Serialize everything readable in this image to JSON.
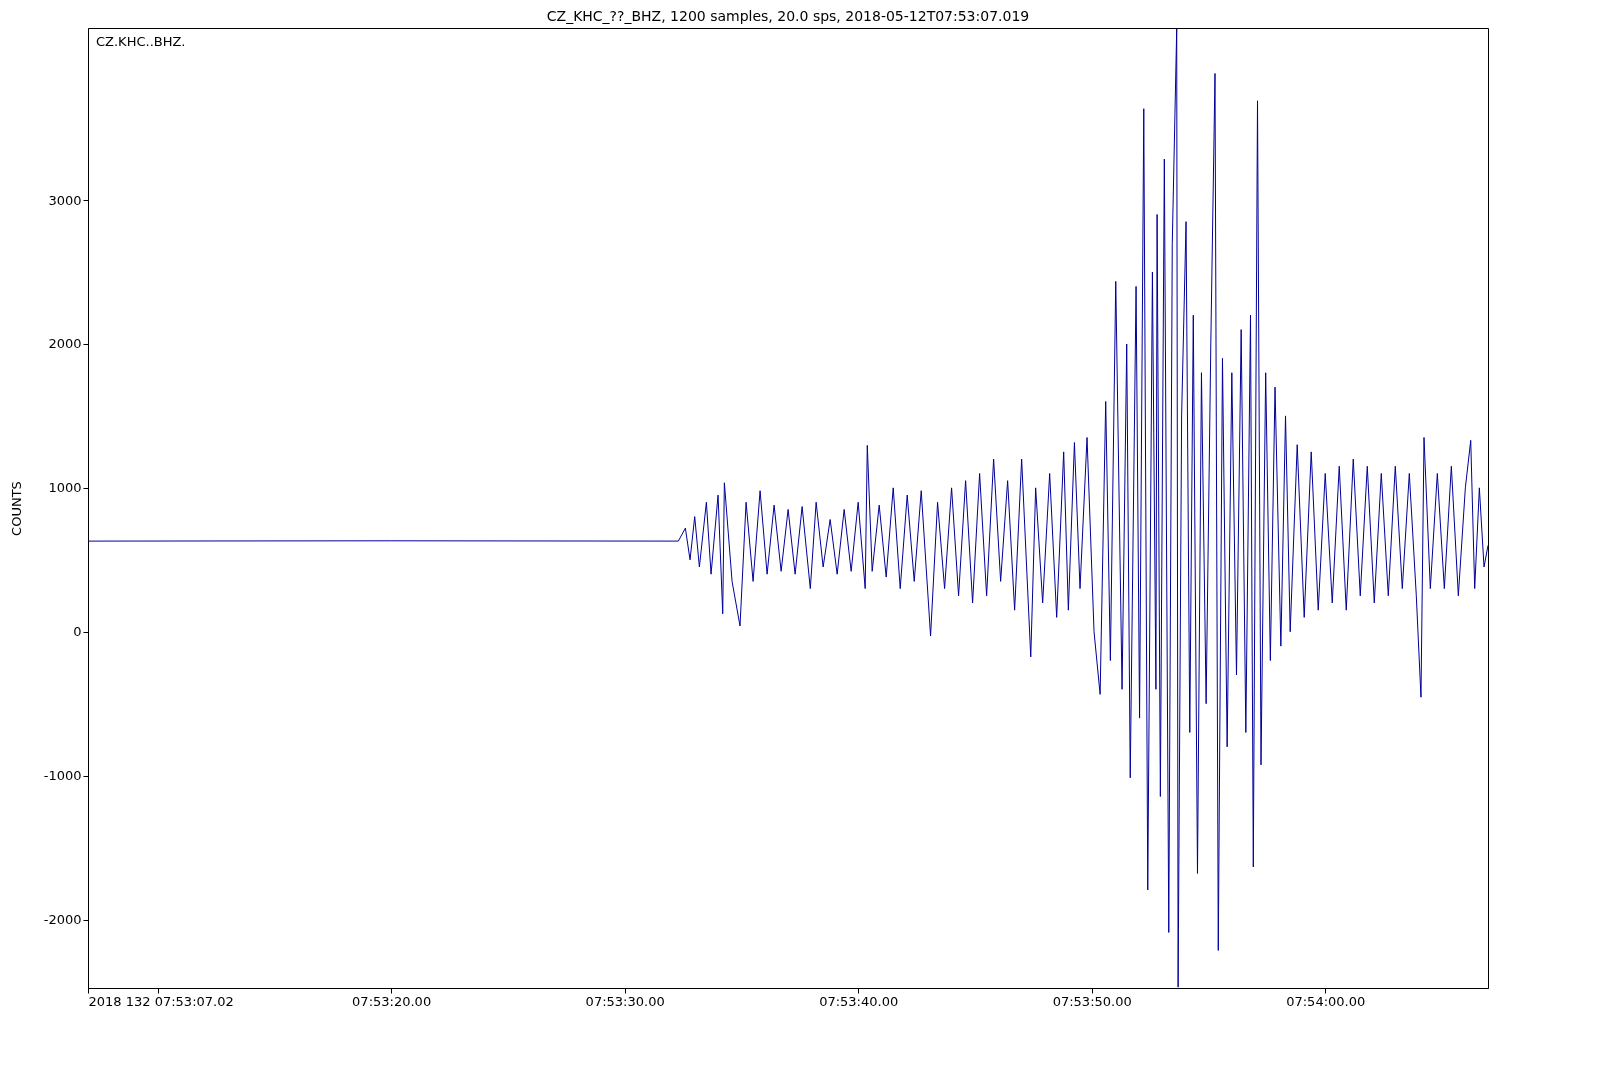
{
  "chart_data": {
    "type": "line",
    "title": "CZ_KHC_??_BHZ, 1200 samples, 20.0 sps, 2018-05-12T07:53:07.019",
    "ylabel": "COUNTS",
    "annotations": [
      "CZ.KHC..BHZ."
    ],
    "xlim": [
      "2018-05-12T07:53:07.02",
      "2018-05-12T07:54:06.97"
    ],
    "ylim": [
      -2476,
      4196
    ],
    "xticks": [
      {
        "value": "2018-05-12T07:53:07.02",
        "label": "2018 132 07:53:07.02"
      },
      {
        "value": "2018-05-12T07:53:10",
        "label": null
      },
      {
        "value": "2018-05-12T07:53:20",
        "label": "07:53:20.00"
      },
      {
        "value": "2018-05-12T07:53:30",
        "label": "07:53:30.00"
      },
      {
        "value": "2018-05-12T07:53:40",
        "label": "07:53:40.00"
      },
      {
        "value": "2018-05-12T07:53:50",
        "label": "07:53:50.00"
      },
      {
        "value": "2018-05-12T07:54:00",
        "label": "07:54:00.00"
      }
    ],
    "yticks": [
      -2000,
      -1000,
      0,
      1000,
      2000,
      3000
    ],
    "grid": false,
    "marker": "none",
    "line_style": "solid",
    "x": [
      "2018-05-12T07:53:07.02",
      "2018-05-12T07:53:20",
      "2018-05-12T07:53:32.3",
      "2018-05-12T07:53:32.6",
      "2018-05-12T07:53:32.8",
      "2018-05-12T07:53:33.0",
      "2018-05-12T07:53:33.2",
      "2018-05-12T07:53:33.5",
      "2018-05-12T07:53:33.7",
      "2018-05-12T07:53:34.0",
      "2018-05-12T07:53:34.2",
      "2018-05-12T07:53:34.27",
      "2018-05-12T07:53:34.6",
      "2018-05-12T07:53:34.94",
      "2018-05-12T07:53:35.2",
      "2018-05-12T07:53:35.5",
      "2018-05-12T07:53:35.8",
      "2018-05-12T07:53:36.1",
      "2018-05-12T07:53:36.4",
      "2018-05-12T07:53:36.7",
      "2018-05-12T07:53:37.0",
      "2018-05-12T07:53:37.3",
      "2018-05-12T07:53:37.6",
      "2018-05-12T07:53:37.95",
      "2018-05-12T07:53:38.2",
      "2018-05-12T07:53:38.5",
      "2018-05-12T07:53:38.8",
      "2018-05-12T07:53:39.1",
      "2018-05-12T07:53:39.4",
      "2018-05-12T07:53:39.7",
      "2018-05-12T07:53:40.0",
      "2018-05-12T07:53:40.3",
      "2018-05-12T07:53:40.39",
      "2018-05-12T07:53:40.6",
      "2018-05-12T07:53:40.9",
      "2018-05-12T07:53:41.2",
      "2018-05-12T07:53:41.5",
      "2018-05-12T07:53:41.8",
      "2018-05-12T07:53:42.1",
      "2018-05-12T07:53:42.4",
      "2018-05-12T07:53:42.7",
      "2018-05-12T07:53:43.1",
      "2018-05-12T07:53:43.4",
      "2018-05-12T07:53:43.7",
      "2018-05-12T07:53:44.0",
      "2018-05-12T07:53:44.3",
      "2018-05-12T07:53:44.6",
      "2018-05-12T07:53:44.9",
      "2018-05-12T07:53:45.2",
      "2018-05-12T07:53:45.5",
      "2018-05-12T07:53:45.8",
      "2018-05-12T07:53:46.1",
      "2018-05-12T07:53:46.4",
      "2018-05-12T07:53:46.7",
      "2018-05-12T07:53:47.0",
      "2018-05-12T07:53:47.39",
      "2018-05-12T07:53:47.6",
      "2018-05-12T07:53:47.9",
      "2018-05-12T07:53:48.2",
      "2018-05-12T07:53:48.5",
      "2018-05-12T07:53:48.8",
      "2018-05-12T07:53:49.0",
      "2018-05-12T07:53:49.26",
      "2018-05-12T07:53:49.5",
      "2018-05-12T07:53:49.8",
      "2018-05-12T07:53:50.1",
      "2018-05-12T07:53:50.36",
      "2018-05-12T07:53:50.6",
      "2018-05-12T07:53:50.8",
      "2018-05-12T07:53:51.03",
      "2018-05-12T07:53:51.3",
      "2018-05-12T07:53:51.5",
      "2018-05-12T07:53:51.65",
      "2018-05-12T07:53:51.9",
      "2018-05-12T07:53:52.05",
      "2018-05-12T07:53:52.23",
      "2018-05-12T07:53:52.4",
      "2018-05-12T07:53:52.6",
      "2018-05-12T07:53:52.75",
      "2018-05-12T07:53:52.8",
      "2018-05-12T07:53:52.94",
      "2018-05-12T07:53:53.11",
      "2018-05-12T07:53:53.3",
      "2018-05-12T07:53:53.45",
      "2018-05-12T07:53:53.64",
      "2018-05-12T07:53:53.7",
      "2018-05-12T07:53:53.85",
      "2018-05-12T07:53:54.04",
      "2018-05-12T07:53:54.2",
      "2018-05-12T07:53:54.35",
      "2018-05-12T07:53:54.53",
      "2018-05-12T07:53:54.7",
      "2018-05-12T07:53:54.9",
      "2018-05-12T07:53:55.1",
      "2018-05-12T07:53:55.28",
      "2018-05-12T07:53:55.42",
      "2018-05-12T07:53:55.6",
      "2018-05-12T07:53:55.8",
      "2018-05-12T07:53:56.0",
      "2018-05-12T07:53:56.2",
      "2018-05-12T07:53:56.4",
      "2018-05-12T07:53:56.6",
      "2018-05-12T07:53:56.8",
      "2018-05-12T07:53:56.92",
      "2018-05-12T07:53:57.1",
      "2018-05-12T07:53:57.25",
      "2018-05-12T07:53:57.45",
      "2018-05-12T07:53:57.65",
      "2018-05-12T07:53:57.85",
      "2018-05-12T07:53:58.1",
      "2018-05-12T07:53:58.3",
      "2018-05-12T07:53:58.5",
      "2018-05-12T07:53:58.8",
      "2018-05-12T07:53:59.1",
      "2018-05-12T07:53:59.4",
      "2018-05-12T07:53:59.7",
      "2018-05-12T07:54:00.0",
      "2018-05-12T07:54:00.3",
      "2018-05-12T07:54:00.6",
      "2018-05-12T07:54:00.9",
      "2018-05-12T07:54:01.2",
      "2018-05-12T07:54:01.5",
      "2018-05-12T07:54:01.8",
      "2018-05-12T07:54:02.1",
      "2018-05-12T07:54:02.4",
      "2018-05-12T07:54:02.7",
      "2018-05-12T07:54:03.0",
      "2018-05-12T07:54:03.3",
      "2018-05-12T07:54:03.6",
      "2018-05-12T07:54:03.9",
      "2018-05-12T07:54:04.1",
      "2018-05-12T07:54:04.23",
      "2018-05-12T07:54:04.5",
      "2018-05-12T07:54:04.8",
      "2018-05-12T07:54:05.1",
      "2018-05-12T07:54:05.4",
      "2018-05-12T07:54:05.7",
      "2018-05-12T07:54:06.0",
      "2018-05-12T07:54:06.23",
      "2018-05-12T07:54:06.4",
      "2018-05-12T07:54:06.6",
      "2018-05-12T07:54:06.8",
      "2018-05-12T07:54:06.97"
    ],
    "series": [
      {
        "color": "#000099",
        "values": [
          630,
          632,
          630,
          720,
          500,
          800,
          450,
          900,
          400,
          950,
          125,
          1035,
          350,
          40,
          900,
          350,
          980,
          400,
          880,
          420,
          850,
          400,
          870,
          300,
          900,
          450,
          780,
          400,
          850,
          420,
          900,
          300,
          1295,
          420,
          880,
          380,
          1000,
          300,
          950,
          350,
          980,
          -30,
          900,
          300,
          1000,
          250,
          1050,
          200,
          1100,
          250,
          1200,
          350,
          1050,
          150,
          1200,
          -175,
          1000,
          200,
          1100,
          100,
          1250,
          150,
          1315,
          300,
          1350,
          0,
          -435,
          1600,
          -200,
          2435,
          -400,
          2000,
          -1015,
          2400,
          -600,
          3635,
          -1795,
          2500,
          -400,
          2900,
          -1145,
          3285,
          -2090,
          2700,
          4190,
          -2470,
          1500,
          2850,
          -700,
          2200,
          -1680,
          1800,
          -500,
          2000,
          3880,
          -2215,
          1900,
          -800,
          1800,
          -300,
          2100,
          -700,
          2200,
          -1635,
          3690,
          -925,
          1800,
          -200,
          1700,
          -100,
          1500,
          0,
          1300,
          100,
          1250,
          150,
          1100,
          200,
          1150,
          150,
          1200,
          250,
          1150,
          200,
          1100,
          250,
          1150,
          300,
          1100,
          250,
          -455,
          1350,
          300,
          1100,
          300,
          1150,
          250,
          1000,
          1330,
          300,
          1000,
          450,
          600
        ]
      }
    ]
  }
}
